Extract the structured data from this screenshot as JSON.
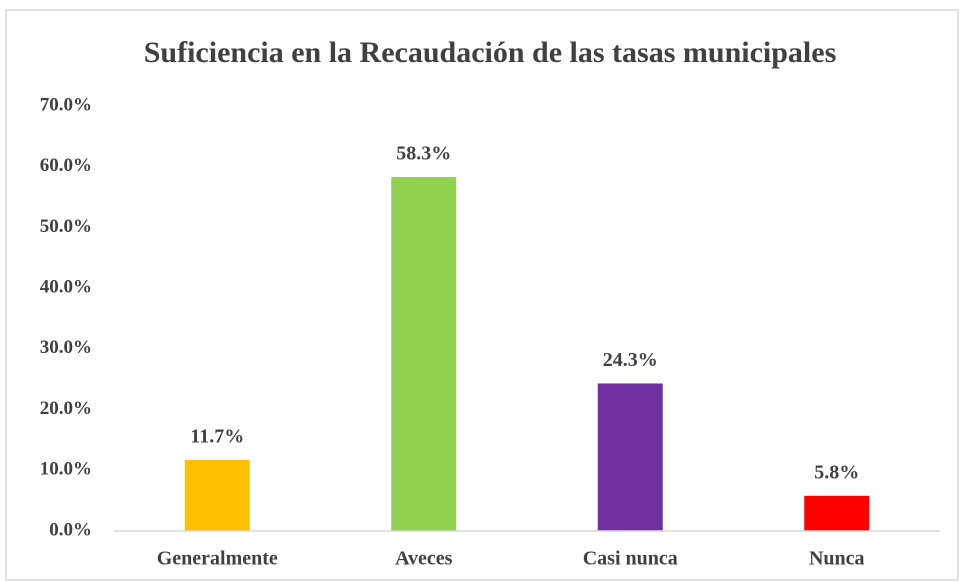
{
  "chart_data": {
    "type": "bar",
    "title": "Suficiencia en la Recaudación de las tasas municipales",
    "categories": [
      "Generalmente",
      "Aveces",
      "Casi nunca",
      "Nunca"
    ],
    "values": [
      11.7,
      58.3,
      24.3,
      5.8
    ],
    "value_labels": [
      "11.7%",
      "58.3%",
      "24.3%",
      "5.8%"
    ],
    "colors": [
      "#ffc000",
      "#92d050",
      "#7030a0",
      "#ff0000"
    ],
    "ylim": [
      0,
      70
    ],
    "yticks": [
      {
        "value": 0,
        "label": "0.0%"
      },
      {
        "value": 10,
        "label": "10.0%"
      },
      {
        "value": 20,
        "label": "20.0%"
      },
      {
        "value": 30,
        "label": "30.0%"
      },
      {
        "value": 40,
        "label": "40.0%"
      },
      {
        "value": 50,
        "label": "50.0%"
      },
      {
        "value": 60,
        "label": "60.0%"
      },
      {
        "value": 70,
        "label": "70.0%"
      }
    ],
    "grid": false
  }
}
